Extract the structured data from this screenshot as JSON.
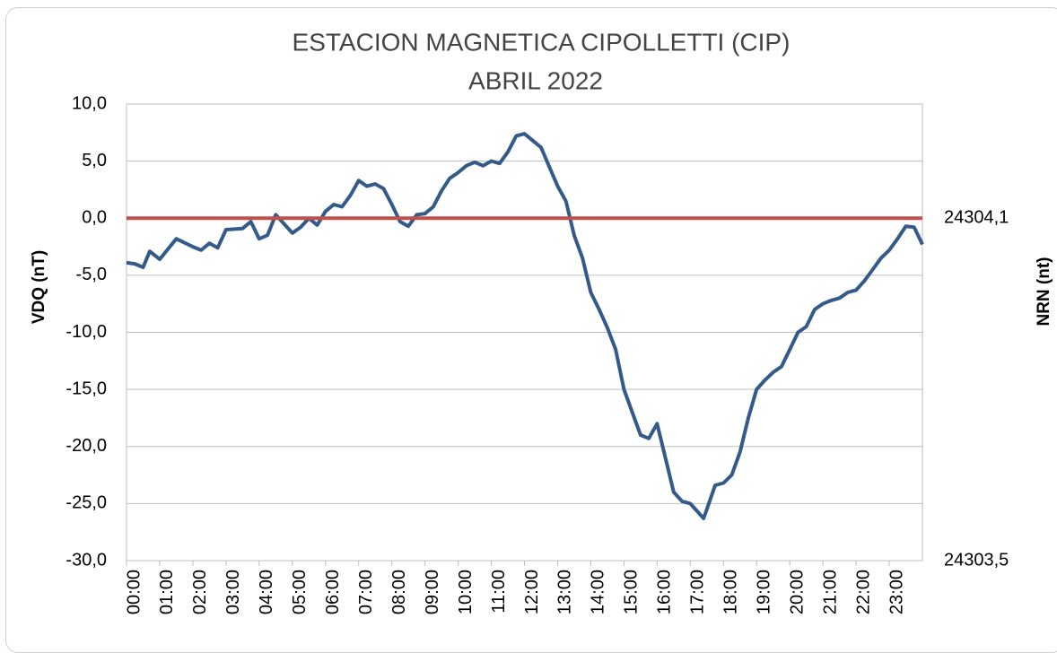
{
  "chart_data": {
    "type": "line",
    "title": "ESTACION MAGNETICA CIPOLLETTI (CIP)",
    "subtitle": "ABRIL 2022",
    "y_label": "VDQ (nT)",
    "y2_label": "NRN (nt)",
    "xlim": [
      0,
      24
    ],
    "xticks": [
      {
        "value": 0,
        "label": "00:00"
      },
      {
        "value": 1,
        "label": "01:00"
      },
      {
        "value": 2,
        "label": "02:00"
      },
      {
        "value": 3,
        "label": "03:00"
      },
      {
        "value": 4,
        "label": "04:00"
      },
      {
        "value": 5,
        "label": "05:00"
      },
      {
        "value": 6,
        "label": "06:00"
      },
      {
        "value": 7,
        "label": "07:00"
      },
      {
        "value": 8,
        "label": "08:00"
      },
      {
        "value": 9,
        "label": "09:00"
      },
      {
        "value": 10,
        "label": "10:00"
      },
      {
        "value": 11,
        "label": "11:00"
      },
      {
        "value": 12,
        "label": "12:00"
      },
      {
        "value": 13,
        "label": "13:00"
      },
      {
        "value": 14,
        "label": "14:00"
      },
      {
        "value": 15,
        "label": "15:00"
      },
      {
        "value": 16,
        "label": "16:00"
      },
      {
        "value": 17,
        "label": "17:00"
      },
      {
        "value": 18,
        "label": "18:00"
      },
      {
        "value": 19,
        "label": "19:00"
      },
      {
        "value": 20,
        "label": "20:00"
      },
      {
        "value": 21,
        "label": "21:00"
      },
      {
        "value": 22,
        "label": "22:00"
      },
      {
        "value": 23,
        "label": "23:00"
      }
    ],
    "ylim": [
      -30,
      10
    ],
    "yticks": [
      {
        "value": 10,
        "label": "10,0"
      },
      {
        "value": 5,
        "label": "5,0"
      },
      {
        "value": 0,
        "label": "0,0"
      },
      {
        "value": -5,
        "label": "-5,0"
      },
      {
        "value": -10,
        "label": "-10,0"
      },
      {
        "value": -15,
        "label": "-15,0"
      },
      {
        "value": -20,
        "label": "-20,0"
      },
      {
        "value": -25,
        "label": "-25,0"
      },
      {
        "value": -30,
        "label": "-30,0"
      }
    ],
    "y2lim": [
      24303.5,
      24304.3
    ],
    "y2ticks": [
      {
        "value": 24304.1,
        "label": "24304,1"
      },
      {
        "value": 24303.5,
        "label": "24303,5"
      }
    ],
    "grid": true,
    "series": [
      {
        "color": "#345a8a",
        "x": [
          0,
          0.25,
          0.5,
          0.7,
          1,
          1.5,
          2,
          2.25,
          2.5,
          2.75,
          3,
          3.5,
          3.75,
          4,
          4.25,
          4.5,
          4.75,
          5,
          5.25,
          5.5,
          5.75,
          6,
          6.25,
          6.5,
          6.75,
          7,
          7.25,
          7.5,
          7.75,
          8,
          8.25,
          8.5,
          8.75,
          9,
          9.25,
          9.5,
          9.75,
          10,
          10.25,
          10.5,
          10.75,
          11,
          11.25,
          11.5,
          11.75,
          12,
          12.25,
          12.5,
          12.75,
          13,
          13.25,
          13.5,
          13.75,
          14,
          14.25,
          14.5,
          14.75,
          15,
          15.25,
          15.5,
          15.75,
          16,
          16.25,
          16.5,
          16.75,
          17,
          17.25,
          17.4,
          17.5,
          17.75,
          18,
          18.25,
          18.5,
          18.75,
          19,
          19.25,
          19.5,
          19.75,
          20,
          20.25,
          20.5,
          20.75,
          21,
          21.25,
          21.5,
          21.75,
          22,
          22.25,
          22.5,
          22.75,
          23,
          23.25,
          23.5,
          23.75,
          24
        ],
        "values": [
          -3.9,
          -4.0,
          -4.3,
          -2.9,
          -3.6,
          -1.8,
          -2.5,
          -2.8,
          -2.2,
          -2.6,
          -1.0,
          -0.9,
          -0.3,
          -1.8,
          -1.5,
          0.3,
          -0.5,
          -1.3,
          -0.8,
          0.0,
          -0.6,
          0.6,
          1.2,
          1.0,
          2.0,
          3.3,
          2.8,
          3.0,
          2.6,
          1.2,
          -0.3,
          -0.7,
          0.3,
          0.4,
          1.0,
          2.4,
          3.5,
          4.0,
          4.6,
          4.9,
          4.6,
          5.0,
          4.8,
          5.8,
          7.2,
          7.4,
          6.8,
          6.2,
          4.5,
          2.8,
          1.5,
          -1.5,
          -3.5,
          -6.5,
          -8.0,
          -9.6,
          -11.5,
          -15.0,
          -17.0,
          -19.0,
          -19.3,
          -18.0,
          -21.0,
          -24.0,
          -24.8,
          -25.0,
          -25.8,
          -26.3,
          -25.5,
          -23.4,
          -23.2,
          -22.5,
          -20.5,
          -17.5,
          -15.0,
          -14.2,
          -13.5,
          -13.0,
          -11.5,
          -10.0,
          -9.5,
          -8.0,
          -7.5,
          -7.2,
          -7.0,
          -6.5,
          -6.3,
          -5.5,
          -4.5,
          -3.5,
          -2.8,
          -1.8,
          -0.7,
          -0.8,
          -2.3
        ]
      },
      {
        "color": "#c0504d",
        "axis": "y2",
        "x": [
          0,
          24
        ],
        "values": [
          24304.1,
          24304.1
        ]
      }
    ]
  }
}
